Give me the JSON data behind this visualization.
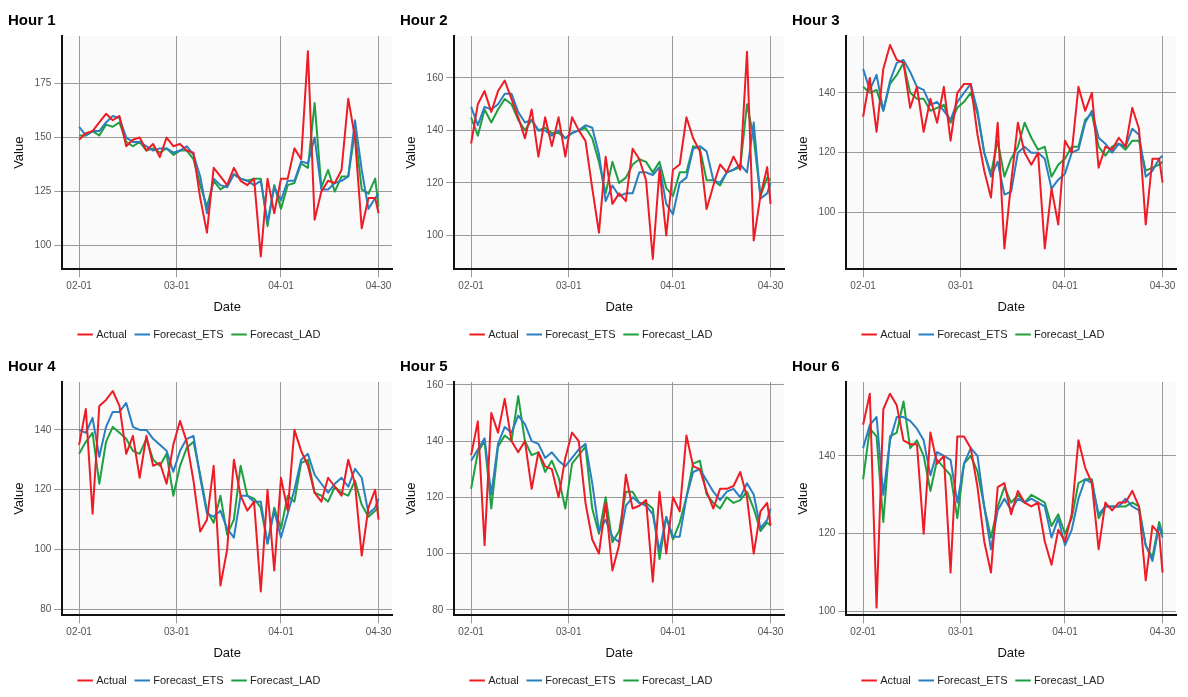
{
  "chart_data": [
    {
      "type": "line",
      "title": "Hour 1",
      "xlabel": "Date",
      "ylabel": "Value",
      "grid": true,
      "legend": "bottom",
      "marker": "none",
      "x": [
        "--02-01",
        "--02-03",
        "--02-05",
        "--02-07",
        "--02-09",
        "--02-11",
        "--02-13",
        "--02-15",
        "--02-17",
        "--02-19",
        "--02-21",
        "--02-23",
        "--02-25",
        "--02-27",
        "--02-29",
        "--03-02",
        "--03-04",
        "--03-06",
        "--03-08",
        "--03-10",
        "--03-12",
        "--03-14",
        "--03-16",
        "--03-18",
        "--03-20",
        "--03-22",
        "--03-24",
        "--03-26",
        "--03-28",
        "--03-30",
        "--04-01",
        "--04-03",
        "--04-05",
        "--04-07",
        "--04-09",
        "--04-11",
        "--04-13",
        "--04-15",
        "--04-17",
        "--04-19",
        "--04-21",
        "--04-23",
        "--04-25",
        "--04-27",
        "--04-29",
        "--04-30"
      ],
      "xlim": [
        "--01-27",
        "--05-04"
      ],
      "xticks": [
        {
          "value": "--02-01",
          "label": "02-01"
        },
        {
          "value": "--03-01",
          "label": "03-01"
        },
        {
          "value": "--04-01",
          "label": "04-01"
        },
        {
          "value": "--04-30",
          "label": "04-30"
        }
      ],
      "ylim": [
        89,
        197
      ],
      "yticks": [
        100,
        125,
        150,
        175
      ],
      "series": [
        {
          "name": "Actual",
          "color": "#ee1c25",
          "values": [
            149,
            152,
            153,
            157,
            161,
            158,
            160,
            146,
            149,
            150,
            144,
            147,
            141,
            150,
            146,
            147,
            144,
            143,
            122,
            106,
            136,
            132,
            128,
            136,
            130,
            128,
            131,
            95,
            131,
            115,
            131,
            131,
            145,
            140,
            190,
            112,
            125,
            130,
            129,
            135,
            168,
            150,
            108,
            122,
            122,
            115
          ]
        },
        {
          "name": "Forecast_ETS",
          "color": "#2a7fc0",
          "values": [
            155,
            151,
            153,
            153,
            157,
            160,
            159,
            150,
            148,
            148,
            146,
            144,
            145,
            145,
            143,
            144,
            146,
            142,
            132,
            115,
            131,
            128,
            127,
            133,
            131,
            130,
            128,
            130,
            111,
            127,
            121,
            130,
            130,
            139,
            138,
            150,
            126,
            126,
            129,
            130,
            132,
            158,
            135,
            117,
            122,
            124
          ]
        },
        {
          "name": "Forecast_LAD",
          "color": "#1fa040",
          "values": [
            151,
            151,
            153,
            151,
            156,
            155,
            157,
            148,
            146,
            148,
            144,
            145,
            143,
            145,
            142,
            144,
            144,
            140,
            128,
            118,
            130,
            126,
            128,
            133,
            131,
            130,
            131,
            131,
            109,
            128,
            117,
            128,
            129,
            138,
            136,
            166,
            127,
            135,
            125,
            132,
            132,
            153,
            126,
            124,
            131,
            118
          ]
        }
      ]
    },
    {
      "type": "line",
      "title": "Hour 2",
      "xlabel": "Date",
      "ylabel": "Value",
      "grid": true,
      "legend": "bottom",
      "marker": "none",
      "x": [
        "--02-01",
        "--02-03",
        "--02-05",
        "--02-07",
        "--02-09",
        "--02-11",
        "--02-13",
        "--02-15",
        "--02-17",
        "--02-19",
        "--02-21",
        "--02-23",
        "--02-25",
        "--02-27",
        "--02-29",
        "--03-02",
        "--03-04",
        "--03-06",
        "--03-08",
        "--03-10",
        "--03-12",
        "--03-14",
        "--03-16",
        "--03-18",
        "--03-20",
        "--03-22",
        "--03-24",
        "--03-26",
        "--03-28",
        "--03-30",
        "--04-01",
        "--04-03",
        "--04-05",
        "--04-07",
        "--04-09",
        "--04-11",
        "--04-13",
        "--04-15",
        "--04-17",
        "--04-19",
        "--04-21",
        "--04-23",
        "--04-25",
        "--04-27",
        "--04-29",
        "--04-30"
      ],
      "xlim": [
        "--01-27",
        "--05-04"
      ],
      "xticks": [
        {
          "value": "--02-01",
          "label": "02-01"
        },
        {
          "value": "--03-01",
          "label": "03-01"
        },
        {
          "value": "--04-01",
          "label": "04-01"
        },
        {
          "value": "--04-30",
          "label": "04-30"
        }
      ],
      "ylim": [
        87,
        176
      ],
      "yticks": [
        100,
        120,
        140,
        160
      ],
      "series": [
        {
          "name": "Actual",
          "color": "#ee1c25",
          "values": [
            135,
            150,
            155,
            147,
            155,
            159,
            152,
            145,
            137,
            148,
            130,
            145,
            134,
            145,
            130,
            145,
            140,
            136,
            118,
            101,
            130,
            112,
            116,
            113,
            133,
            129,
            121,
            91,
            125,
            100,
            125,
            127,
            145,
            137,
            132,
            110,
            119,
            127,
            124,
            130,
            125,
            170,
            98,
            115,
            126,
            112
          ]
        },
        {
          "name": "Forecast_ETS",
          "color": "#2a7fc0",
          "values": [
            149,
            142,
            149,
            148,
            150,
            154,
            154,
            147,
            143,
            144,
            140,
            140,
            138,
            140,
            137,
            139,
            140,
            142,
            141,
            131,
            113,
            119,
            115,
            116,
            116,
            124,
            124,
            123,
            126,
            112,
            108,
            120,
            122,
            133,
            134,
            132,
            121,
            120,
            124,
            125,
            127,
            124,
            143,
            114,
            116,
            120
          ]
        },
        {
          "name": "Forecast_LAD",
          "color": "#1fa040",
          "values": [
            145,
            138,
            148,
            143,
            148,
            152,
            150,
            144,
            140,
            144,
            140,
            141,
            139,
            139,
            137,
            139,
            140,
            141,
            137,
            128,
            116,
            128,
            120,
            122,
            127,
            129,
            128,
            124,
            128,
            118,
            115,
            124,
            124,
            134,
            133,
            121,
            121,
            119,
            124,
            125,
            126,
            150,
            137,
            115,
            122,
            121
          ]
        }
      ]
    },
    {
      "type": "line",
      "title": "Hour 3",
      "xlabel": "Date",
      "ylabel": "Value",
      "grid": true,
      "legend": "bottom",
      "marker": "none",
      "x": [
        "--02-01",
        "--02-03",
        "--02-05",
        "--02-07",
        "--02-09",
        "--02-11",
        "--02-13",
        "--02-15",
        "--02-17",
        "--02-19",
        "--02-21",
        "--02-23",
        "--02-25",
        "--02-27",
        "--02-29",
        "--03-02",
        "--03-04",
        "--03-06",
        "--03-08",
        "--03-10",
        "--03-12",
        "--03-14",
        "--03-16",
        "--03-18",
        "--03-20",
        "--03-22",
        "--03-24",
        "--03-26",
        "--03-28",
        "--03-30",
        "--04-01",
        "--04-03",
        "--04-05",
        "--04-07",
        "--04-09",
        "--04-11",
        "--04-13",
        "--04-15",
        "--04-17",
        "--04-19",
        "--04-21",
        "--04-23",
        "--04-25",
        "--04-27",
        "--04-29",
        "--04-30"
      ],
      "xlim": [
        "--01-27",
        "--05-04"
      ],
      "xticks": [
        {
          "value": "--02-01",
          "label": "02-01"
        },
        {
          "value": "--03-01",
          "label": "03-01"
        },
        {
          "value": "--04-01",
          "label": "04-01"
        },
        {
          "value": "--04-30",
          "label": "04-30"
        }
      ],
      "ylim": [
        81,
        159
      ],
      "yticks": [
        100,
        120,
        140
      ],
      "series": [
        {
          "name": "Actual",
          "color": "#ee1c25",
          "values": [
            132,
            145,
            127,
            148,
            156,
            151,
            150,
            135,
            142,
            127,
            138,
            130,
            142,
            124,
            140,
            143,
            143,
            126,
            114,
            105,
            130,
            88,
            110,
            130,
            120,
            116,
            120,
            88,
            108,
            96,
            124,
            120,
            142,
            134,
            140,
            115,
            122,
            121,
            125,
            122,
            135,
            128,
            96,
            118,
            118,
            110
          ]
        },
        {
          "name": "Forecast_ETS",
          "color": "#2a7fc0",
          "values": [
            148,
            141,
            146,
            134,
            144,
            150,
            151,
            147,
            142,
            141,
            136,
            137,
            134,
            131,
            137,
            140,
            143,
            134,
            120,
            112,
            117,
            106,
            107,
            120,
            122,
            120,
            120,
            118,
            108,
            111,
            113,
            120,
            121,
            130,
            134,
            125,
            123,
            120,
            123,
            122,
            128,
            126,
            112,
            114,
            118,
            119
          ]
        },
        {
          "name": "Forecast_LAD",
          "color": "#1fa040",
          "values": [
            142,
            140,
            141,
            134,
            143,
            146,
            150,
            140,
            138,
            138,
            134,
            135,
            136,
            130,
            135,
            137,
            140,
            133,
            120,
            113,
            124,
            112,
            118,
            122,
            130,
            125,
            121,
            122,
            112,
            116,
            118,
            122,
            122,
            131,
            133,
            122,
            119,
            122,
            123,
            121,
            124,
            124,
            114,
            115,
            116,
            117
          ]
        }
      ]
    },
    {
      "type": "line",
      "title": "Hour 4",
      "xlabel": "Date",
      "ylabel": "Value",
      "grid": true,
      "legend": "bottom",
      "marker": "none",
      "x": [
        "--02-01",
        "--02-03",
        "--02-05",
        "--02-07",
        "--02-09",
        "--02-11",
        "--02-13",
        "--02-15",
        "--02-17",
        "--02-19",
        "--02-21",
        "--02-23",
        "--02-25",
        "--02-27",
        "--02-29",
        "--03-02",
        "--03-04",
        "--03-06",
        "--03-08",
        "--03-10",
        "--03-12",
        "--03-14",
        "--03-16",
        "--03-18",
        "--03-20",
        "--03-22",
        "--03-24",
        "--03-26",
        "--03-28",
        "--03-30",
        "--04-01",
        "--04-03",
        "--04-05",
        "--04-07",
        "--04-09",
        "--04-11",
        "--04-13",
        "--04-15",
        "--04-17",
        "--04-19",
        "--04-21",
        "--04-23",
        "--04-25",
        "--04-27",
        "--04-29",
        "--04-30"
      ],
      "xlim": [
        "--01-27",
        "--05-04"
      ],
      "xticks": [
        {
          "value": "--02-01",
          "label": "02-01"
        },
        {
          "value": "--03-01",
          "label": "03-01"
        },
        {
          "value": "--04-01",
          "label": "04-01"
        },
        {
          "value": "--04-30",
          "label": "04-30"
        }
      ],
      "ylim": [
        78,
        156
      ],
      "yticks": [
        80,
        100,
        120,
        140
      ],
      "series": [
        {
          "name": "Actual",
          "color": "#ee1c25",
          "values": [
            135,
            147,
            112,
            148,
            150,
            153,
            148,
            132,
            138,
            124,
            138,
            128,
            129,
            122,
            135,
            143,
            136,
            123,
            106,
            110,
            128,
            88,
            100,
            130,
            118,
            113,
            116,
            86,
            120,
            93,
            124,
            113,
            140,
            133,
            128,
            119,
            116,
            124,
            121,
            118,
            130,
            122,
            98,
            114,
            120,
            110
          ]
        },
        {
          "name": "Forecast_ETS",
          "color": "#2a7fc0",
          "values": [
            140,
            139,
            144,
            131,
            141,
            146,
            146,
            149,
            141,
            140,
            140,
            137,
            135,
            133,
            126,
            133,
            137,
            138,
            124,
            112,
            111,
            113,
            107,
            104,
            118,
            118,
            116,
            116,
            102,
            113,
            104,
            112,
            120,
            130,
            132,
            125,
            122,
            119,
            122,
            124,
            121,
            127,
            124,
            112,
            114,
            117
          ]
        },
        {
          "name": "Forecast_LAD",
          "color": "#1fa040",
          "values": [
            132,
            136,
            139,
            122,
            136,
            141,
            139,
            137,
            133,
            132,
            137,
            130,
            128,
            132,
            118,
            128,
            134,
            136,
            125,
            113,
            109,
            118,
            105,
            110,
            128,
            118,
            117,
            114,
            102,
            114,
            107,
            118,
            116,
            129,
            130,
            119,
            118,
            116,
            121,
            119,
            118,
            123,
            115,
            111,
            113,
            114
          ]
        }
      ]
    },
    {
      "type": "line",
      "title": "Hour 5",
      "xlabel": "Date",
      "ylabel": "Value",
      "grid": true,
      "legend": "bottom",
      "marker": "none",
      "x": [
        "--02-01",
        "--02-03",
        "--02-05",
        "--02-07",
        "--02-09",
        "--02-11",
        "--02-13",
        "--02-15",
        "--02-17",
        "--02-19",
        "--02-21",
        "--02-23",
        "--02-25",
        "--02-27",
        "--02-29",
        "--03-02",
        "--03-04",
        "--03-06",
        "--03-08",
        "--03-10",
        "--03-12",
        "--03-14",
        "--03-16",
        "--03-18",
        "--03-20",
        "--03-22",
        "--03-24",
        "--03-26",
        "--03-28",
        "--03-30",
        "--04-01",
        "--04-03",
        "--04-05",
        "--04-07",
        "--04-09",
        "--04-11",
        "--04-13",
        "--04-15",
        "--04-17",
        "--04-19",
        "--04-21",
        "--04-23",
        "--04-25",
        "--04-27",
        "--04-29",
        "--04-30"
      ],
      "xlim": [
        "--01-27",
        "--05-04"
      ],
      "xticks": [
        {
          "value": "--02-01",
          "label": "02-01"
        },
        {
          "value": "--03-01",
          "label": "03-01"
        },
        {
          "value": "--04-01",
          "label": "04-01"
        },
        {
          "value": "--04-30",
          "label": "04-30"
        }
      ],
      "ylim": [
        78,
        161
      ],
      "yticks": [
        80,
        100,
        120,
        140,
        160
      ],
      "series": [
        {
          "name": "Actual",
          "color": "#ee1c25",
          "values": [
            135,
            147,
            103,
            150,
            143,
            155,
            140,
            136,
            140,
            123,
            136,
            131,
            130,
            120,
            134,
            143,
            140,
            118,
            105,
            100,
            118,
            94,
            103,
            128,
            116,
            117,
            119,
            90,
            122,
            100,
            120,
            115,
            142,
            131,
            130,
            122,
            116,
            123,
            123,
            124,
            129,
            120,
            100,
            115,
            118,
            110
          ]
        },
        {
          "name": "Forecast_ETS",
          "color": "#2a7fc0",
          "values": [
            133,
            137,
            141,
            121,
            139,
            145,
            143,
            149,
            146,
            140,
            139,
            134,
            136,
            133,
            131,
            134,
            137,
            139,
            125,
            108,
            112,
            106,
            104,
            117,
            120,
            118,
            117,
            114,
            101,
            113,
            106,
            106,
            120,
            129,
            130,
            126,
            122,
            119,
            122,
            123,
            120,
            125,
            121,
            109,
            112,
            116
          ]
        },
        {
          "name": "Forecast_LAD",
          "color": "#1fa040",
          "values": [
            123,
            136,
            140,
            116,
            138,
            142,
            140,
            156,
            140,
            135,
            136,
            129,
            133,
            127,
            116,
            132,
            135,
            138,
            116,
            107,
            120,
            104,
            108,
            122,
            122,
            118,
            118,
            116,
            98,
            113,
            105,
            111,
            120,
            132,
            133,
            121,
            118,
            116,
            120,
            118,
            119,
            122,
            116,
            108,
            111,
            110
          ]
        }
      ]
    },
    {
      "type": "line",
      "title": "Hour 6",
      "xlabel": "Date",
      "ylabel": "Value",
      "grid": true,
      "legend": "bottom",
      "marker": "none",
      "x": [
        "--02-01",
        "--02-03",
        "--02-05",
        "--02-07",
        "--02-09",
        "--02-11",
        "--02-13",
        "--02-15",
        "--02-17",
        "--02-19",
        "--02-21",
        "--02-23",
        "--02-25",
        "--02-27",
        "--02-29",
        "--03-02",
        "--03-04",
        "--03-06",
        "--03-08",
        "--03-10",
        "--03-12",
        "--03-14",
        "--03-16",
        "--03-18",
        "--03-20",
        "--03-22",
        "--03-24",
        "--03-26",
        "--03-28",
        "--03-30",
        "--04-01",
        "--04-03",
        "--04-05",
        "--04-07",
        "--04-09",
        "--04-11",
        "--04-13",
        "--04-15",
        "--04-17",
        "--04-19",
        "--04-21",
        "--04-23",
        "--04-25",
        "--04-27",
        "--04-29",
        "--04-30"
      ],
      "xlim": [
        "--01-27",
        "--05-04"
      ],
      "xticks": [
        {
          "value": "--02-01",
          "label": "02-01"
        },
        {
          "value": "--03-01",
          "label": "03-01"
        },
        {
          "value": "--04-01",
          "label": "04-01"
        },
        {
          "value": "--04-30",
          "label": "04-30"
        }
      ],
      "ylim": [
        99,
        159
      ],
      "yticks": [
        100,
        120,
        140
      ],
      "series": [
        {
          "name": "Actual",
          "color": "#ee1c25",
          "values": [
            148,
            156,
            101,
            152,
            156,
            153,
            144,
            143,
            143,
            120,
            146,
            138,
            140,
            110,
            145,
            145,
            142,
            132,
            118,
            110,
            132,
            133,
            125,
            131,
            128,
            127,
            128,
            118,
            112,
            121,
            118,
            125,
            144,
            137,
            133,
            116,
            128,
            126,
            128,
            128,
            131,
            127,
            108,
            122,
            120,
            110
          ]
        },
        {
          "name": "Forecast_ETS",
          "color": "#2a7fc0",
          "values": [
            142,
            148,
            150,
            130,
            144,
            150,
            150,
            149,
            147,
            144,
            135,
            141,
            140,
            139,
            128,
            138,
            142,
            140,
            127,
            116,
            126,
            129,
            126,
            129,
            128,
            129,
            128,
            127,
            119,
            124,
            117,
            121,
            129,
            134,
            133,
            125,
            127,
            127,
            127,
            129,
            127,
            126,
            117,
            113,
            122,
            119
          ]
        },
        {
          "name": "Forecast_LAD",
          "color": "#1fa040",
          "values": [
            134,
            147,
            145,
            123,
            145,
            146,
            154,
            142,
            144,
            140,
            131,
            139,
            137,
            135,
            124,
            138,
            140,
            136,
            127,
            119,
            127,
            132,
            128,
            130,
            128,
            130,
            129,
            128,
            122,
            125,
            120,
            124,
            133,
            134,
            134,
            124,
            127,
            127,
            127,
            127,
            128,
            127,
            117,
            114,
            123,
            120
          ]
        }
      ]
    }
  ]
}
